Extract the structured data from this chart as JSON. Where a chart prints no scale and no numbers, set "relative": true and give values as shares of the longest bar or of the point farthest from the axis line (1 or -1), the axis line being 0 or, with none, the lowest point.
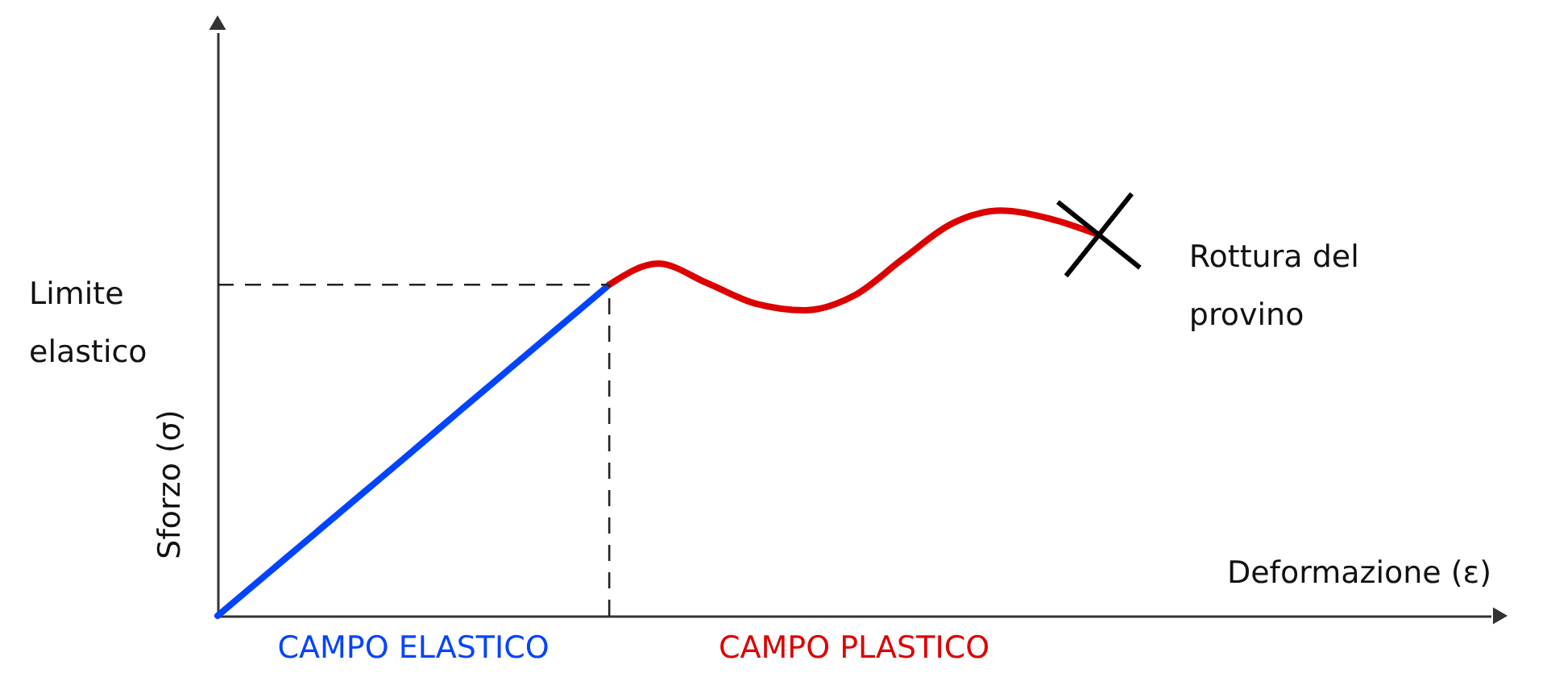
{
  "chart_data": {
    "type": "line",
    "relative": true,
    "xlabel": "Deformazione (ε)",
    "ylabel": "Sforzo (σ)",
    "categories": [
      null,
      null,
      null,
      null,
      null,
      null,
      null,
      null,
      null,
      null,
      null,
      null,
      null,
      null,
      null,
      null,
      null,
      null,
      null,
      null,
      null,
      null,
      null,
      null,
      null,
      null,
      null
    ],
    "series": [
      {
        "name": "CAMPO ELASTICO",
        "color": "#0044ff",
        "values": [
          0,
          0.102,
          0.204,
          0.306,
          0.408,
          0.511,
          0.613,
          0.715,
          0.817,
          null,
          null,
          null,
          null,
          null,
          null,
          null,
          null,
          null,
          null,
          null,
          null,
          null,
          null,
          null,
          null,
          null,
          null
        ]
      },
      {
        "name": "CAMPO PLASTICO",
        "color": "#dd0000",
        "values": [
          null,
          null,
          null,
          null,
          null,
          null,
          null,
          null,
          0.817,
          0.869,
          0.821,
          0.77,
          0.754,
          0.79,
          0.881,
          0.968,
          1.0,
          0.98,
          0.94,
          null,
          null,
          null,
          null,
          null,
          null,
          null,
          null
        ]
      }
    ],
    "ref_lines": [
      {
        "axis": "y",
        "value": 0.817,
        "label": "Limite elastico",
        "line_style": "dashed"
      }
    ],
    "annotations": [
      "Rottura del provino"
    ],
    "legend": false,
    "marker": "none",
    "line_style": "solid",
    "grid": false
  }
}
